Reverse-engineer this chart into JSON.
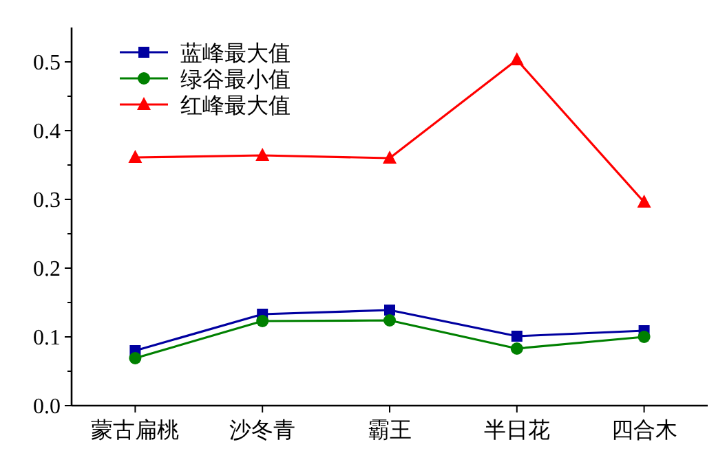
{
  "chart_data": {
    "type": "line",
    "categories": [
      "蒙古扁桃",
      "沙冬青",
      "霸王",
      "半日花",
      "四合木"
    ],
    "ylim": [
      0,
      0.55
    ],
    "yticks": [
      {
        "value": 0,
        "label": "0.0"
      },
      {
        "value": 0.05,
        "label": null
      },
      {
        "value": 0.1,
        "label": "0.1"
      },
      {
        "value": 0.15,
        "label": null
      },
      {
        "value": 0.2,
        "label": "0.2"
      },
      {
        "value": 0.25,
        "label": null
      },
      {
        "value": 0.3,
        "label": "0.3"
      },
      {
        "value": 0.35,
        "label": null
      },
      {
        "value": 0.4,
        "label": "0.4"
      },
      {
        "value": 0.45,
        "label": null
      },
      {
        "value": 0.5,
        "label": "0.5"
      }
    ],
    "legend": "top left",
    "grid": false,
    "series": [
      {
        "name": "蓝峰最大值",
        "color": "#0000a0",
        "marker": "square",
        "values": [
          0.08,
          0.133,
          0.139,
          0.101,
          0.109
        ]
      },
      {
        "name": "绿谷最小值",
        "color": "#008000",
        "marker": "circle",
        "values": [
          0.069,
          0.123,
          0.124,
          0.083,
          0.1
        ]
      },
      {
        "name": "红峰最大值",
        "color": "#ff0000",
        "marker": "triangle",
        "values": [
          0.361,
          0.364,
          0.36,
          0.503,
          0.296
        ]
      }
    ]
  }
}
